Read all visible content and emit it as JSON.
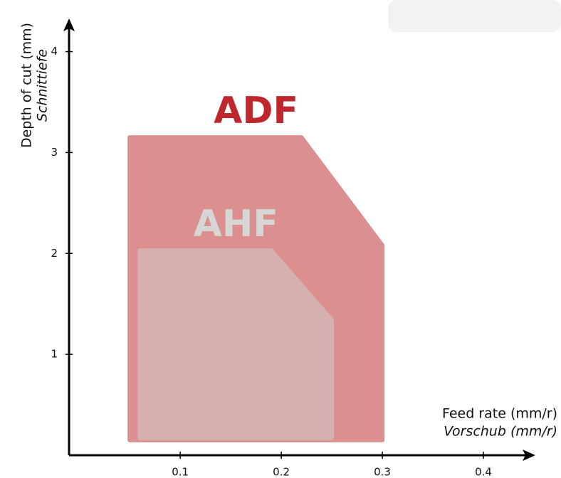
{
  "chart_data": {
    "type": "region",
    "x_title": "Feed rate (mm/r)",
    "x_subtitle": "Vorschub (mm/r)",
    "y_title": "Depth of cut (mm)",
    "y_subtitle": "Schnittiefe",
    "xlim": [
      -0.01,
      0.45
    ],
    "ylim": [
      0,
      4.3
    ],
    "xticks": [
      0.1,
      0.2,
      0.3,
      0.4
    ],
    "yticks": [
      1,
      2,
      3,
      4
    ],
    "series": [
      {
        "name": "ADF",
        "color": "#dc8f8f",
        "label_color": "#c0272d",
        "x": [
          0.05,
          0.05,
          0.22,
          0.3,
          0.3
        ],
        "y": [
          0.15,
          3.15,
          3.15,
          2.08,
          0.15
        ]
      },
      {
        "name": "AHF",
        "color": "#d6b0b0",
        "label_color": "#d6d6d6",
        "x": [
          0.06,
          0.06,
          0.19,
          0.25,
          0.25
        ],
        "y": [
          0.17,
          2.03,
          2.03,
          1.34,
          0.17
        ]
      }
    ]
  }
}
